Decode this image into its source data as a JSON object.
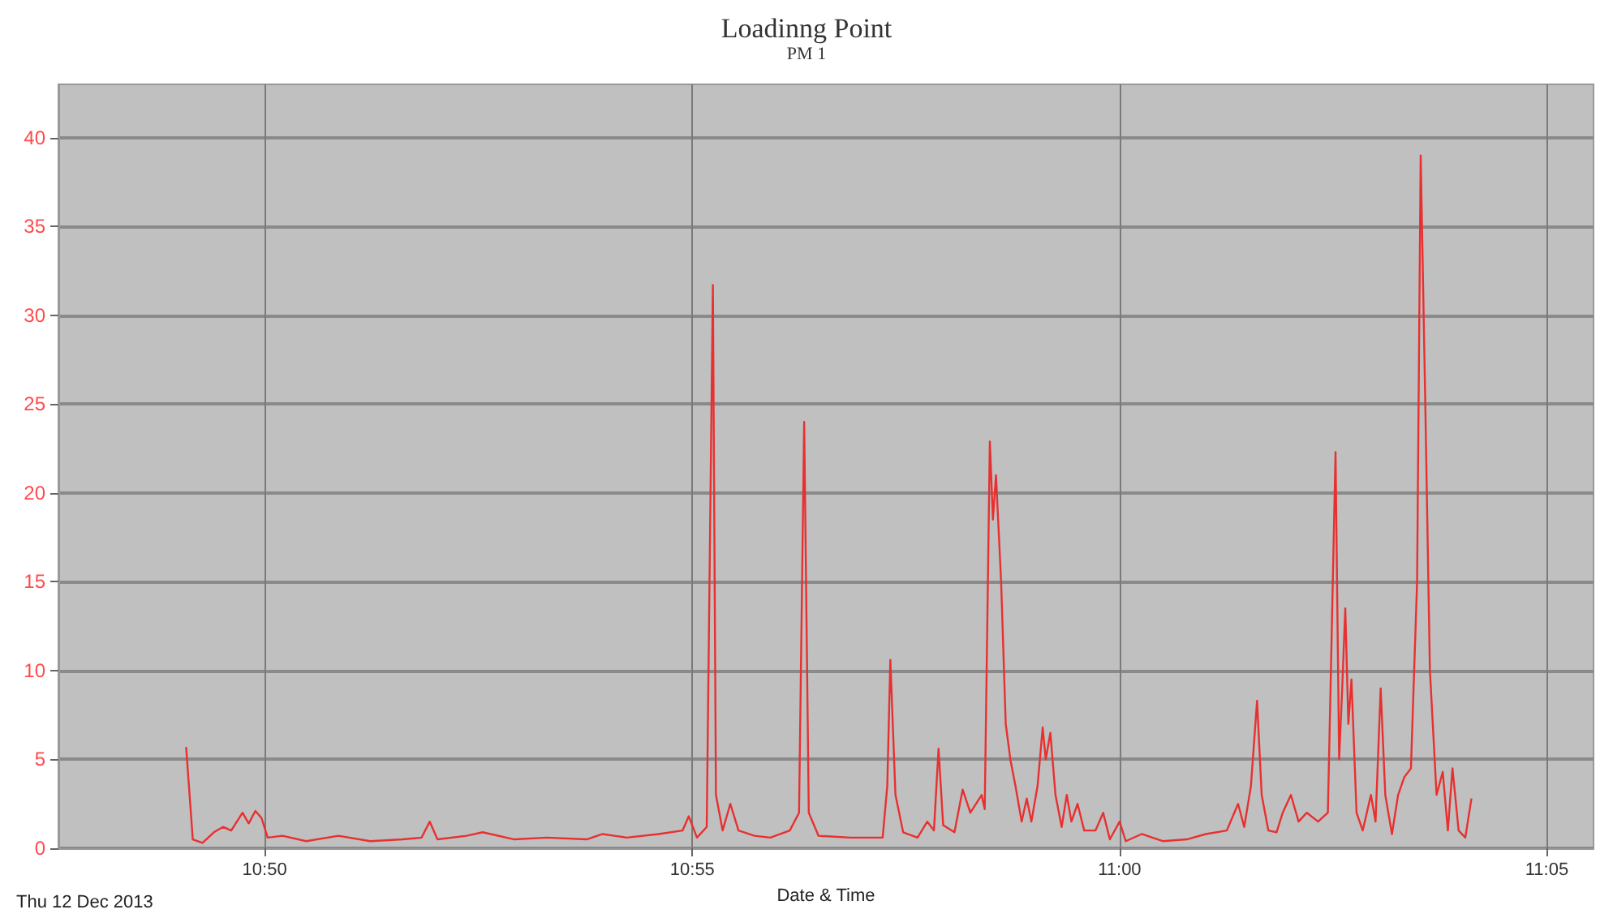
{
  "chart_data": {
    "type": "line",
    "title": "Loadinng Point",
    "subtitle": "PM 1",
    "xlabel": "Date & Time",
    "annotations": [
      "Thu 12 Dec 2013"
    ],
    "xlim": [
      10.7931,
      11.0924
    ],
    "xticks": [
      {
        "value": 10.8333,
        "label": "10:50"
      },
      {
        "value": 10.9167,
        "label": "10:55"
      },
      {
        "value": 11,
        "label": "11:00"
      },
      {
        "value": 11.0833,
        "label": "11:05"
      }
    ],
    "ylim": [
      0,
      43
    ],
    "yticks": [
      0,
      5,
      10,
      15,
      20,
      25,
      30,
      35,
      40
    ],
    "grid": true,
    "series": [
      {
        "color": "#e83030",
        "x": [
          10.818,
          10.8193,
          10.8212,
          10.8234,
          10.8252,
          10.8268,
          10.829,
          10.8302,
          10.8315,
          10.8327,
          10.8339,
          10.8368,
          10.8414,
          10.8477,
          10.8539,
          10.8602,
          10.8639,
          10.8655,
          10.867,
          10.8727,
          10.8758,
          10.882,
          10.8883,
          10.8961,
          10.8992,
          10.9039,
          10.9101,
          10.9148,
          10.916,
          10.9176,
          10.9195,
          10.9207,
          10.9213,
          10.9226,
          10.9241,
          10.9257,
          10.9288,
          10.9319,
          10.9357,
          10.9375,
          10.9385,
          10.9394,
          10.9413,
          10.9475,
          10.9538,
          10.9547,
          10.9553,
          10.9563,
          10.9578,
          10.9606,
          10.9625,
          10.9638,
          10.9647,
          10.9656,
          10.9678,
          10.9694,
          10.9709,
          10.9731,
          10.9737,
          10.9747,
          10.9753,
          10.9759,
          10.9769,
          10.9778,
          10.9787,
          10.9797,
          10.9809,
          10.9819,
          10.9828,
          10.984,
          10.985,
          10.9856,
          10.9865,
          10.9875,
          10.9887,
          10.9897,
          10.9906,
          10.9918,
          10.9931,
          10.9953,
          10.9968,
          10.9981,
          11.0,
          11.0012,
          11.0043,
          11.0084,
          11.0131,
          11.0168,
          11.0209,
          11.0231,
          11.0243,
          11.0256,
          11.0268,
          11.0277,
          11.029,
          11.0306,
          11.0318,
          11.0334,
          11.0349,
          11.0365,
          11.0387,
          11.0406,
          11.0412,
          11.0421,
          11.0428,
          11.0434,
          11.044,
          11.0446,
          11.0452,
          11.0462,
          11.0474,
          11.049,
          11.0499,
          11.0509,
          11.0518,
          11.0531,
          11.0543,
          11.0555,
          11.0568,
          11.058,
          11.0587,
          11.0596,
          11.0605,
          11.0618,
          11.063,
          11.064,
          11.0649,
          11.0661,
          11.0674,
          11.0686
        ],
        "values": [
          5.7,
          0.5,
          0.3,
          0.9,
          1.2,
          1.0,
          2.0,
          1.4,
          2.1,
          1.7,
          0.6,
          0.7,
          0.4,
          0.7,
          0.4,
          0.5,
          0.6,
          1.5,
          0.5,
          0.7,
          0.9,
          0.5,
          0.6,
          0.5,
          0.8,
          0.6,
          0.8,
          1.0,
          1.8,
          0.6,
          1.2,
          31.7,
          3.0,
          1.0,
          2.5,
          1.0,
          0.7,
          0.6,
          1.0,
          2.0,
          24.0,
          2.0,
          0.7,
          0.6,
          0.6,
          3.5,
          10.6,
          3.0,
          0.9,
          0.6,
          1.5,
          1.0,
          5.6,
          1.3,
          0.9,
          3.3,
          2.0,
          3.0,
          2.2,
          22.9,
          18.5,
          21.0,
          15.0,
          7.0,
          5.0,
          3.5,
          1.5,
          2.8,
          1.5,
          3.5,
          6.8,
          5.0,
          6.5,
          3.0,
          1.2,
          3.0,
          1.5,
          2.5,
          1.0,
          1.0,
          2.0,
          0.5,
          1.5,
          0.4,
          0.8,
          0.4,
          0.5,
          0.8,
          1.0,
          2.5,
          1.2,
          3.5,
          8.3,
          3.0,
          1.0,
          0.9,
          2.0,
          3.0,
          1.5,
          2.0,
          1.5,
          2.0,
          10.0,
          22.3,
          5.0,
          9.0,
          13.5,
          7.0,
          9.5,
          2.0,
          1.0,
          3.0,
          1.5,
          9.0,
          3.0,
          0.8,
          3.0,
          4.0,
          4.5,
          15.0,
          39.0,
          25.0,
          10.0,
          3.0,
          4.3,
          1.0,
          4.5,
          1.0,
          0.6,
          2.8
        ]
      }
    ]
  }
}
